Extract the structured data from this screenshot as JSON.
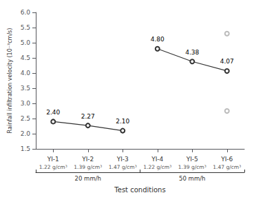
{
  "chart_data": {
    "type": "line",
    "xlabel": "Test conditions",
    "ylabel": "Rainfall infiltration velocity (10⁻³cm/s)",
    "categories": [
      "YI-1",
      "YI-2",
      "YI-3",
      "YI-4",
      "YI-5",
      "YI-6"
    ],
    "sub_labels": [
      "1.22 g/cm³",
      "1.39 g/cm³",
      "1.47 g/cm³",
      "1.22 g/cm³",
      "1.39 g/cm³",
      "1.47 g/cm³"
    ],
    "group_labels": [
      "20 mm/h",
      "50 mm/h"
    ],
    "series": [
      {
        "type": "line",
        "color": "#333333",
        "values": [
          2.4,
          2.27,
          2.1,
          null,
          null,
          null
        ],
        "value_labels": [
          "2.40",
          "2.27",
          "2.10",
          null,
          null,
          null
        ]
      },
      {
        "type": "line",
        "color": "#333333",
        "values": [
          null,
          null,
          null,
          4.8,
          4.38,
          4.07
        ],
        "value_labels": [
          null,
          null,
          null,
          "4.80",
          "4.38",
          "4.07"
        ]
      },
      {
        "type": "scatter",
        "color": "#aaaaaa",
        "x": [
          "YI-6",
          "YI-6"
        ],
        "values": [
          5.3,
          2.75
        ]
      }
    ],
    "data_labels": true,
    "ylim": [
      1.5,
      6.0
    ],
    "yticks": [
      1.5,
      {
        "value": 2.0,
        "label": "2.0"
      },
      2.5,
      {
        "value": 3.0,
        "label": "3.0"
      },
      3.5,
      {
        "value": 4.0,
        "label": "4.0"
      },
      4.5,
      {
        "value": 5.0,
        "label": "5.0"
      },
      5.5,
      {
        "value": 6.0,
        "label": "6.0"
      }
    ],
    "grid": false
  }
}
